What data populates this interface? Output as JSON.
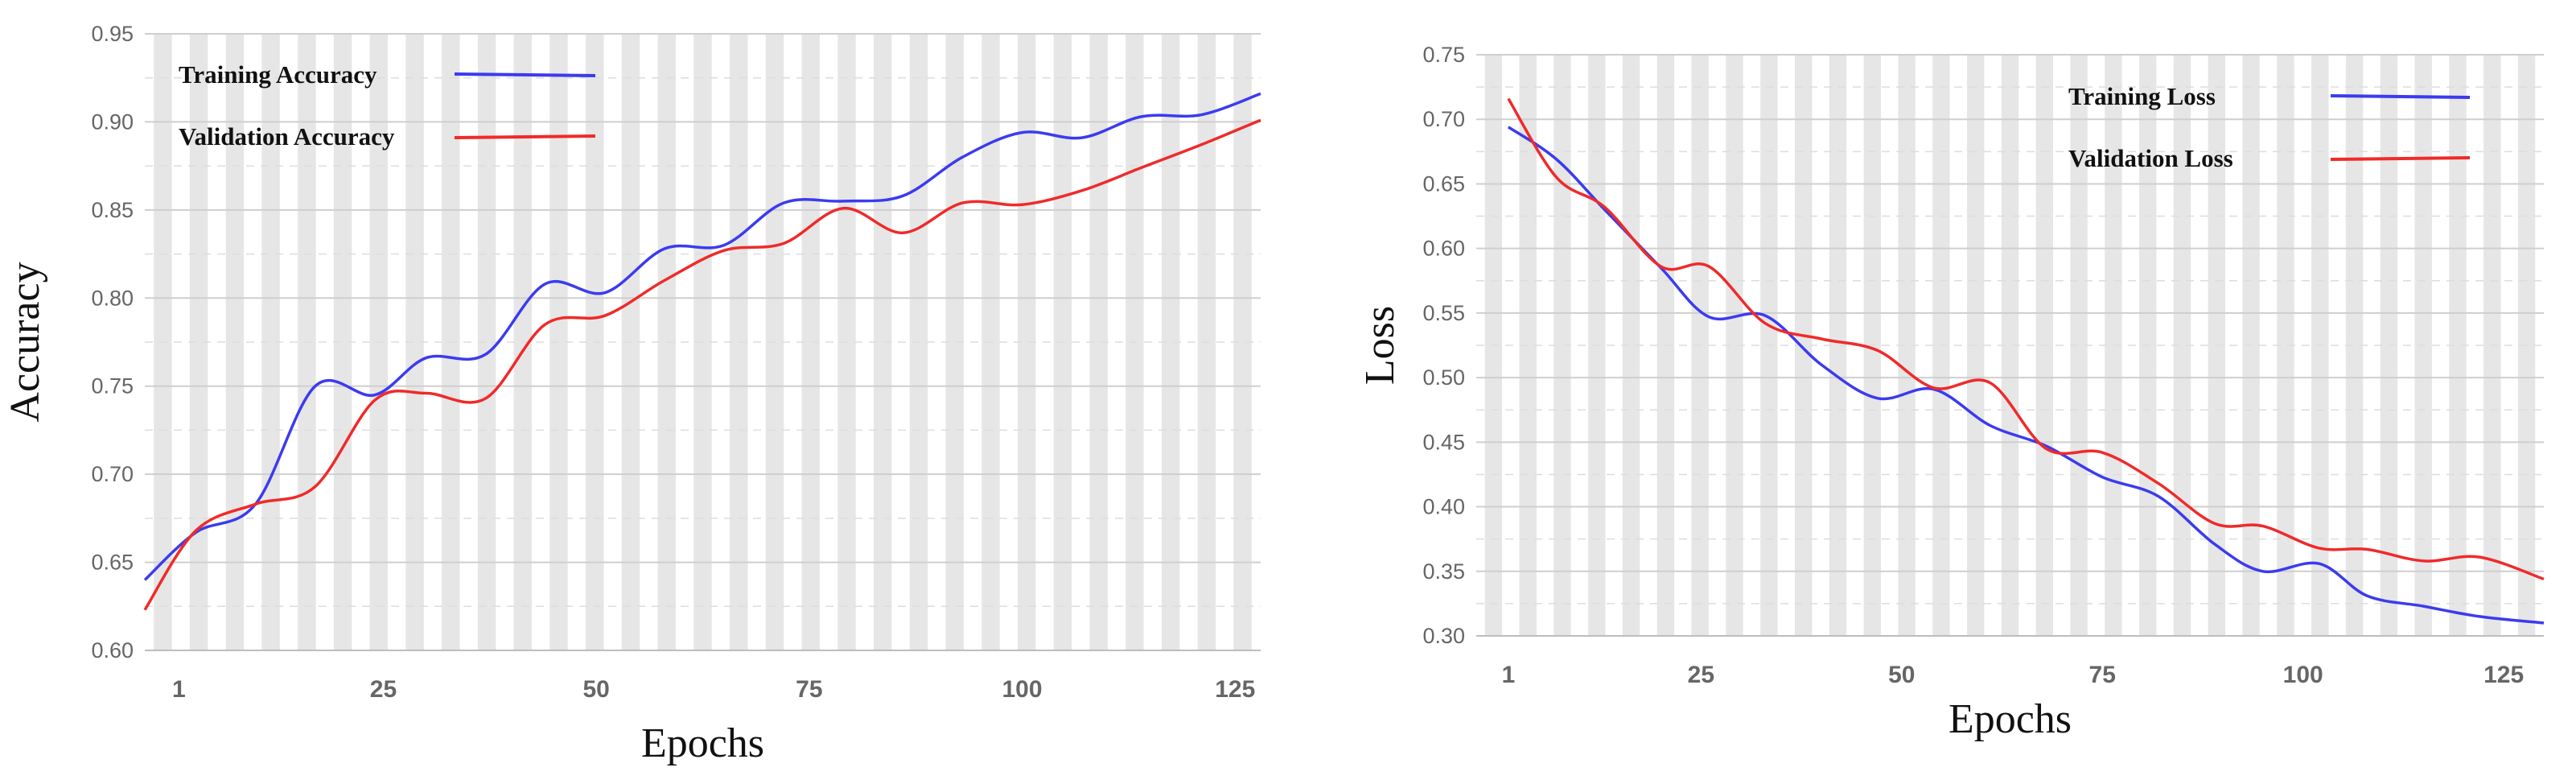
{
  "colors": {
    "training": "#3b3bf0",
    "validation": "#f02a2a",
    "stripe": "#e6e6e6",
    "grid": "#cfcfcf"
  },
  "chart_data": [
    {
      "type": "line",
      "xlabel": "Epochs",
      "ylabel": "Accuracy",
      "xlim": [
        -3,
        128
      ],
      "ylim": [
        0.6,
        0.95
      ],
      "xticks": [
        1,
        25,
        50,
        75,
        100,
        125
      ],
      "xtick_labels": [
        "1",
        "25",
        "50",
        "75",
        "100",
        "125"
      ],
      "yticks": [
        0.6,
        0.65,
        0.7,
        0.75,
        0.8,
        0.85,
        0.9,
        0.95
      ],
      "ytick_labels": [
        "0.60",
        "0.65",
        "0.70",
        "0.75",
        "0.80",
        "0.85",
        "0.90",
        "0.95"
      ],
      "legend_position": "top-left",
      "grid": true,
      "series": [
        {
          "name": "Training Accuracy",
          "x": [
            -3,
            3,
            10,
            17,
            24,
            30,
            37,
            44,
            51,
            58,
            65,
            72,
            79,
            86,
            93,
            100,
            107,
            114,
            121,
            128
          ],
          "values": [
            0.64,
            0.667,
            0.683,
            0.75,
            0.745,
            0.766,
            0.768,
            0.808,
            0.803,
            0.828,
            0.83,
            0.854,
            0.855,
            0.858,
            0.88,
            0.894,
            0.891,
            0.903,
            0.904,
            0.916
          ]
        },
        {
          "name": "Validation Accuracy",
          "x": [
            -3,
            3,
            10,
            17,
            24,
            30,
            37,
            44,
            51,
            58,
            65,
            72,
            79,
            86,
            93,
            100,
            107,
            114,
            121,
            128
          ],
          "values": [
            0.623,
            0.668,
            0.683,
            0.693,
            0.742,
            0.746,
            0.743,
            0.785,
            0.79,
            0.81,
            0.827,
            0.831,
            0.851,
            0.837,
            0.854,
            0.853,
            0.861,
            0.874,
            0.887,
            0.901
          ]
        }
      ]
    },
    {
      "type": "line",
      "xlabel": "Epochs",
      "ylabel": "Loss",
      "xlim": [
        -3,
        130
      ],
      "ylim": [
        0.3,
        0.75
      ],
      "xticks": [
        1,
        25,
        50,
        75,
        100,
        125
      ],
      "xtick_labels": [
        "1",
        "25",
        "50",
        "75",
        "100",
        "125"
      ],
      "yticks": [
        0.3,
        0.35,
        0.4,
        0.45,
        0.5,
        0.55,
        0.6,
        0.65,
        0.7,
        0.75
      ],
      "ytick_labels": [
        "0.30",
        "0.35",
        "0.40",
        "0.45",
        "0.50",
        "0.55",
        "0.60",
        "0.65",
        "0.70",
        "0.75"
      ],
      "legend_position": "top-right",
      "grid": true,
      "series": [
        {
          "name": "Training Loss",
          "x": [
            1,
            7,
            13,
            20,
            26,
            33,
            40,
            47,
            54,
            61,
            68,
            75,
            82,
            89,
            95,
            102,
            108,
            115,
            122,
            130
          ],
          "values": [
            0.694,
            0.669,
            0.63,
            0.585,
            0.547,
            0.548,
            0.51,
            0.484,
            0.491,
            0.463,
            0.447,
            0.423,
            0.408,
            0.371,
            0.35,
            0.356,
            0.331,
            0.323,
            0.315,
            0.31
          ]
        },
        {
          "name": "Validation Loss",
          "x": [
            1,
            7,
            13,
            20,
            26,
            33,
            40,
            47,
            54,
            61,
            68,
            75,
            82,
            89,
            95,
            102,
            108,
            115,
            122,
            130
          ],
          "values": [
            0.716,
            0.655,
            0.632,
            0.586,
            0.586,
            0.542,
            0.53,
            0.521,
            0.492,
            0.496,
            0.445,
            0.442,
            0.418,
            0.387,
            0.385,
            0.368,
            0.367,
            0.358,
            0.361,
            0.344
          ]
        }
      ]
    }
  ]
}
